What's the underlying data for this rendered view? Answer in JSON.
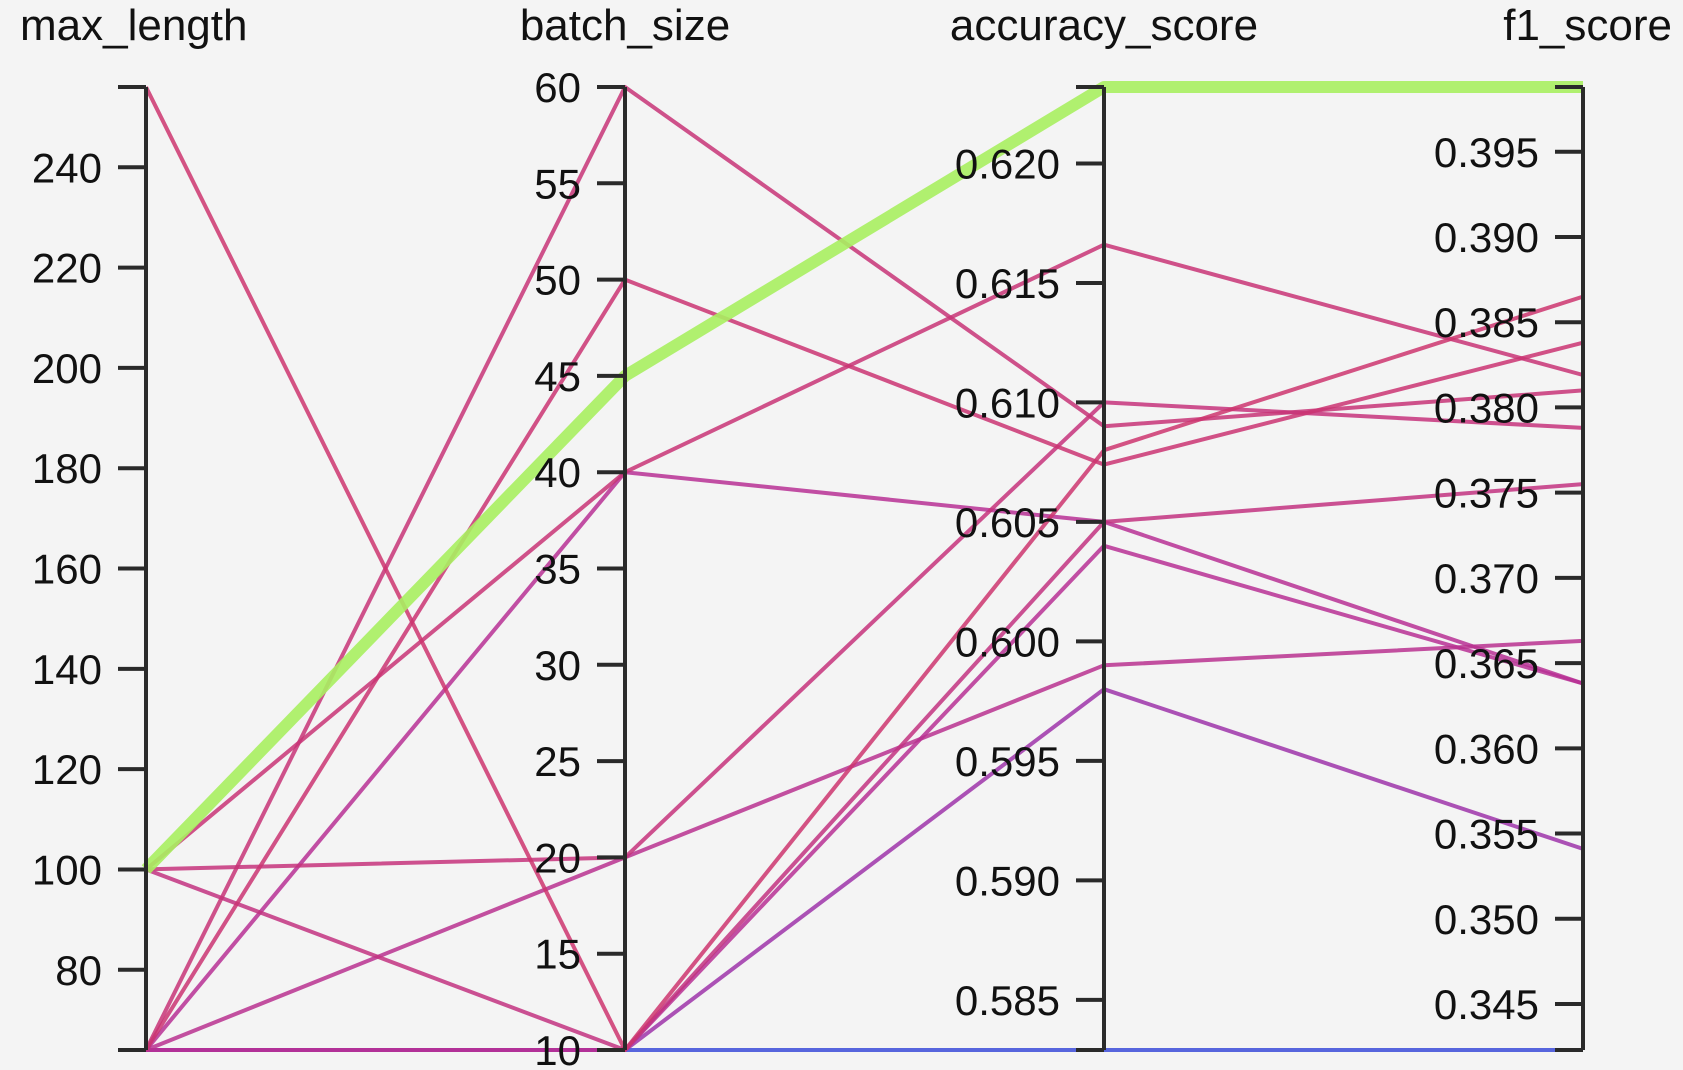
{
  "chart_data": {
    "type": "parallel_coordinates",
    "dimensions": [
      {
        "name": "max_length",
        "range": [
          64,
          256
        ],
        "ticks": [
          80,
          100,
          120,
          140,
          160,
          180,
          200,
          220,
          240
        ]
      },
      {
        "name": "batch_size",
        "range": [
          10,
          60
        ],
        "ticks": [
          10,
          15,
          20,
          25,
          30,
          35,
          40,
          45,
          50,
          55,
          60
        ]
      },
      {
        "name": "accuracy_score",
        "range": [
          0.5829,
          0.6232
        ],
        "ticks": [
          "0.585",
          "0.590",
          "0.595",
          "0.600",
          "0.605",
          "0.610",
          "0.615",
          "0.620"
        ]
      },
      {
        "name": "f1_score",
        "range": [
          0.3423,
          0.3988
        ],
        "ticks": [
          "0.345",
          "0.350",
          "0.355",
          "0.360",
          "0.365",
          "0.370",
          "0.375",
          "0.380",
          "0.385",
          "0.390",
          "0.395"
        ]
      }
    ],
    "color_scale": {
      "min": 0.3423,
      "max": 0.3988,
      "low": "#3b4bd8",
      "mid": "#b02fa0",
      "high": "#a8f060",
      "colored_by": "f1_score"
    },
    "lines": [
      {
        "values": [
          64,
          10,
          0.5829,
          0.3423
        ]
      },
      {
        "values": [
          100,
          45,
          0.6232,
          0.3988
        ]
      },
      {
        "values": [
          100,
          40,
          0.6166,
          0.3819
        ]
      },
      {
        "values": [
          100,
          20,
          0.61,
          0.3788
        ]
      },
      {
        "values": [
          100,
          10,
          0.605,
          0.3755
        ]
      },
      {
        "values": [
          256,
          10,
          0.608,
          0.3865
        ]
      },
      {
        "values": [
          64,
          60,
          0.609,
          0.381
        ]
      },
      {
        "values": [
          64,
          50,
          0.6074,
          0.3838
        ]
      },
      {
        "values": [
          64,
          40,
          0.605,
          0.3638
        ]
      },
      {
        "values": [
          64,
          20,
          0.599,
          0.3663
        ]
      },
      {
        "values": [
          64,
          10,
          0.604,
          0.3638
        ]
      },
      {
        "values": [
          64,
          10,
          0.598,
          0.3541
        ]
      }
    ],
    "grid": false,
    "legend": "none"
  }
}
